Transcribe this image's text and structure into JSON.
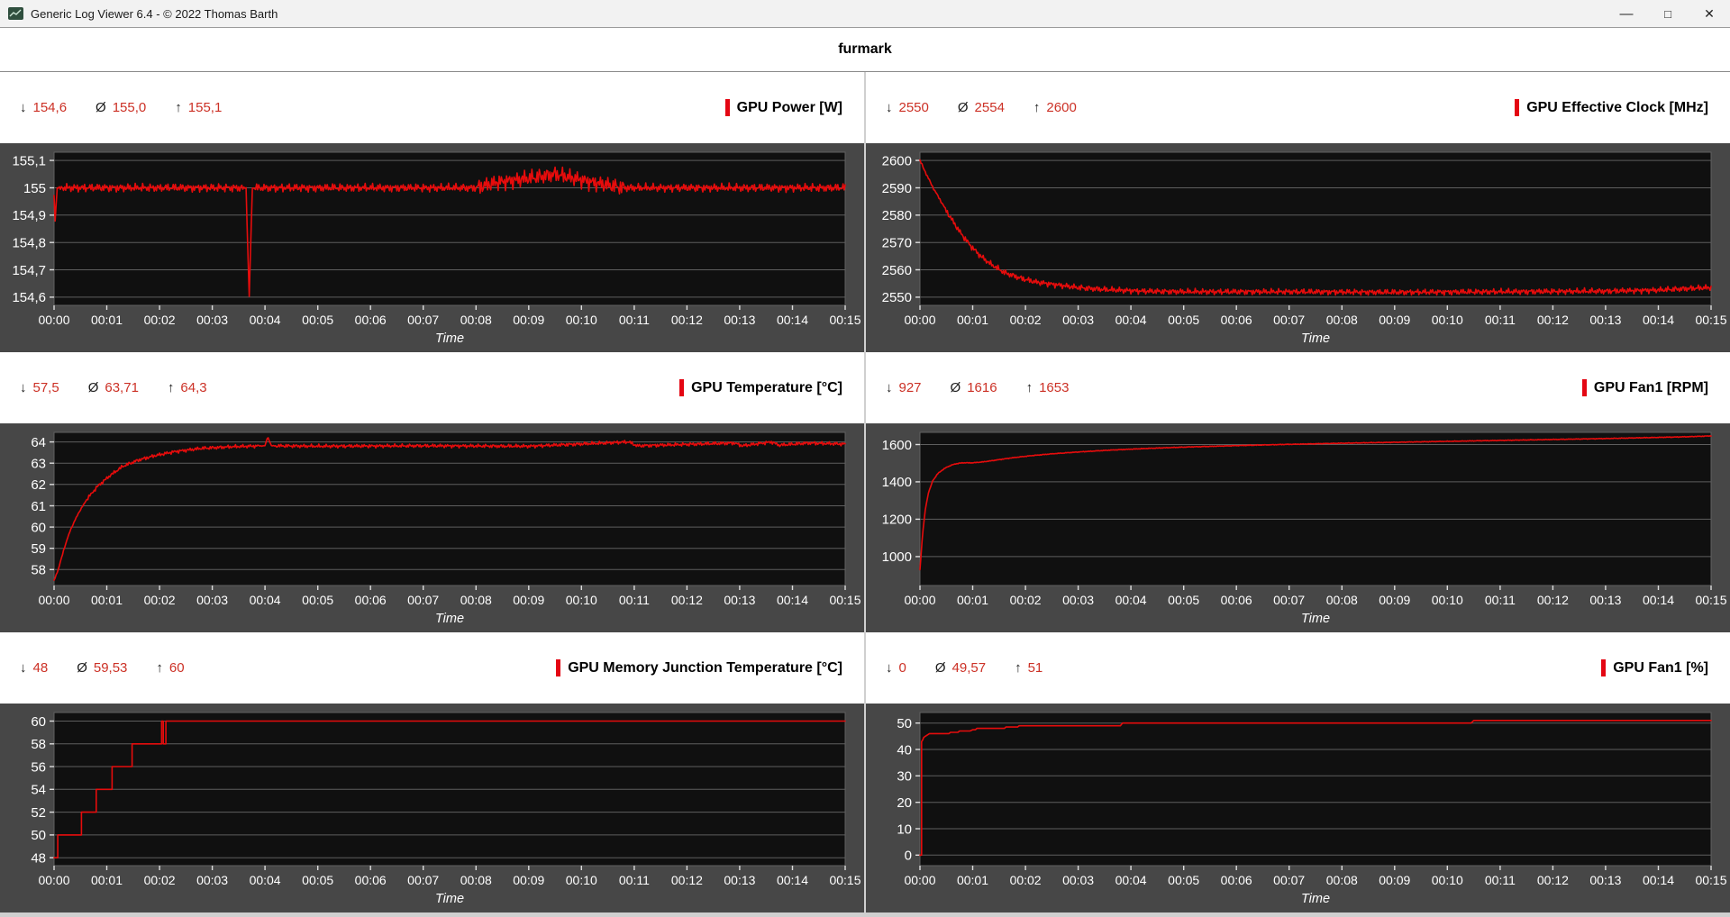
{
  "window": {
    "title": "Generic Log Viewer 6.4 - © 2022 Thomas Barth",
    "controls": {
      "minimize_icon": "—",
      "maximize_icon": "□",
      "close_icon": "✕"
    }
  },
  "header": {
    "title": "furmark"
  },
  "symbols": {
    "min": "↓",
    "avg": "Ø",
    "max": "↑"
  },
  "chart_common": {
    "xlabel": "Time",
    "xlim": [
      0,
      15
    ],
    "xtick_labels": [
      "00:00",
      "00:01",
      "00:02",
      "00:03",
      "00:04",
      "00:05",
      "00:06",
      "00:07",
      "00:08",
      "00:09",
      "00:10",
      "00:11",
      "00:12",
      "00:13",
      "00:14",
      "00:15"
    ],
    "line_color": "#e60c0c",
    "grid_color": "#5e5e5e",
    "tick_color": "#dcdcdc",
    "plot_bg": "#101010",
    "panel_bg": "#474747",
    "stats_red": "#cc3126",
    "title_bar_red": "#e40613"
  },
  "chart_data": [
    {
      "type": "line",
      "title": "GPU Power [W]",
      "stats": {
        "min": "154,6",
        "avg": "155,0",
        "max": "155,1"
      },
      "ylim": [
        154.57,
        155.13
      ],
      "yticks": [
        {
          "v": 155.1,
          "label": "155,1"
        },
        {
          "v": 155,
          "label": "155"
        },
        {
          "v": 154.9,
          "label": "154,9"
        },
        {
          "v": 154.8,
          "label": "154,8"
        },
        {
          "v": 154.7,
          "label": "154,7"
        },
        {
          "v": 154.6,
          "label": "154,6"
        }
      ],
      "xlabel": "Time",
      "line": {
        "keypoints": [
          [
            0,
            154.97
          ],
          [
            0.02,
            154.88
          ],
          [
            0.06,
            155
          ],
          [
            3.64,
            155
          ],
          [
            3.7,
            154.6
          ],
          [
            3.76,
            155
          ],
          [
            8,
            155
          ],
          [
            8.4,
            155.02
          ],
          [
            9.2,
            155.04
          ],
          [
            9.5,
            155.05
          ],
          [
            10.2,
            155.02
          ],
          [
            10.8,
            155
          ],
          [
            15,
            155
          ]
        ],
        "noise": 0.018,
        "zones": [
          {
            "from": 0,
            "to": 0.1,
            "amp": 0.004
          },
          {
            "from": 3.6,
            "to": 3.8,
            "amp": 0.004
          },
          {
            "from": 8,
            "to": 10.8,
            "amp": 0.036
          }
        ]
      }
    },
    {
      "type": "line",
      "title": "GPU Effective Clock [MHz]",
      "stats": {
        "min": "2550",
        "avg": "2554",
        "max": "2600"
      },
      "ylim": [
        2547,
        2603
      ],
      "yticks": [
        {
          "v": 2600,
          "label": "2600"
        },
        {
          "v": 2590,
          "label": "2590"
        },
        {
          "v": 2580,
          "label": "2580"
        },
        {
          "v": 2570,
          "label": "2570"
        },
        {
          "v": 2560,
          "label": "2560"
        },
        {
          "v": 2550,
          "label": "2550"
        }
      ],
      "xlabel": "Time",
      "line": {
        "keypoints": [
          [
            0,
            2600
          ],
          [
            0.12,
            2595
          ],
          [
            0.25,
            2590
          ],
          [
            0.4,
            2585
          ],
          [
            0.55,
            2580
          ],
          [
            0.75,
            2574
          ],
          [
            0.95,
            2569
          ],
          [
            1.15,
            2565
          ],
          [
            1.35,
            2562
          ],
          [
            1.6,
            2559
          ],
          [
            1.9,
            2557
          ],
          [
            2.2,
            2555.5
          ],
          [
            2.6,
            2554.5
          ],
          [
            3,
            2553.5
          ],
          [
            3.5,
            2552.8
          ],
          [
            4.2,
            2552.2
          ],
          [
            5,
            2552
          ],
          [
            7,
            2552
          ],
          [
            9,
            2551.8
          ],
          [
            11,
            2552
          ],
          [
            13,
            2552.2
          ],
          [
            14,
            2552.6
          ],
          [
            14.6,
            2553.2
          ],
          [
            15,
            2553.5
          ]
        ],
        "noise": 1.3,
        "zones": [
          {
            "from": 0,
            "to": 0.5,
            "amp": 0.5
          }
        ]
      }
    },
    {
      "type": "line",
      "title": "GPU Temperature [°C]",
      "stats": {
        "min": "57,5",
        "avg": "63,71",
        "max": "64,3"
      },
      "ylim": [
        57.25,
        64.45
      ],
      "yticks": [
        {
          "v": 64,
          "label": "64"
        },
        {
          "v": 63,
          "label": "63"
        },
        {
          "v": 62,
          "label": "62"
        },
        {
          "v": 61,
          "label": "61"
        },
        {
          "v": 60,
          "label": "60"
        },
        {
          "v": 59,
          "label": "59"
        },
        {
          "v": 58,
          "label": "58"
        }
      ],
      "xlabel": "Time",
      "line": {
        "keypoints": [
          [
            0,
            57.5
          ],
          [
            0.08,
            58
          ],
          [
            0.18,
            58.9
          ],
          [
            0.3,
            59.8
          ],
          [
            0.45,
            60.6
          ],
          [
            0.62,
            61.3
          ],
          [
            0.82,
            61.9
          ],
          [
            1.05,
            62.4
          ],
          [
            1.3,
            62.85
          ],
          [
            1.6,
            63.15
          ],
          [
            1.9,
            63.35
          ],
          [
            2.3,
            63.55
          ],
          [
            2.8,
            63.7
          ],
          [
            3.4,
            63.78
          ],
          [
            4,
            63.82
          ],
          [
            4.05,
            64.25
          ],
          [
            4.12,
            63.82
          ],
          [
            5,
            63.8
          ],
          [
            7,
            63.82
          ],
          [
            9,
            63.8
          ],
          [
            10.9,
            64
          ],
          [
            11.05,
            63.82
          ],
          [
            12.9,
            63.95
          ],
          [
            13.05,
            63.82
          ],
          [
            13.6,
            64
          ],
          [
            13.75,
            63.85
          ],
          [
            14.3,
            63.95
          ],
          [
            15,
            63.9
          ]
        ],
        "noise": 0.1,
        "zones": [
          {
            "from": 0,
            "to": 0.6,
            "amp": 0.03
          },
          {
            "from": 3.9,
            "to": 4.2,
            "amp": 0.02
          }
        ]
      }
    },
    {
      "type": "line",
      "title": "GPU Fan1 [RPM]",
      "stats": {
        "min": "927",
        "avg": "1616",
        "max": "1653"
      },
      "ylim": [
        845,
        1665
      ],
      "yticks": [
        {
          "v": 1600,
          "label": "1600"
        },
        {
          "v": 1400,
          "label": "1400"
        },
        {
          "v": 1200,
          "label": "1200"
        },
        {
          "v": 1000,
          "label": "1000"
        }
      ],
      "xlabel": "Time",
      "line": {
        "keypoints": [
          [
            0,
            930
          ],
          [
            0.05,
            1120
          ],
          [
            0.1,
            1250
          ],
          [
            0.16,
            1340
          ],
          [
            0.24,
            1405
          ],
          [
            0.35,
            1448
          ],
          [
            0.5,
            1478
          ],
          [
            0.65,
            1495
          ],
          [
            0.8,
            1502
          ],
          [
            1,
            1502
          ],
          [
            1.2,
            1507
          ],
          [
            1.45,
            1517
          ],
          [
            1.75,
            1529
          ],
          [
            2.1,
            1540
          ],
          [
            2.5,
            1550
          ],
          [
            3,
            1560
          ],
          [
            3.6,
            1570
          ],
          [
            4.3,
            1579
          ],
          [
            5,
            1586
          ],
          [
            6,
            1594
          ],
          [
            7,
            1601
          ],
          [
            8,
            1607
          ],
          [
            9,
            1612
          ],
          [
            10,
            1617
          ],
          [
            11,
            1622
          ],
          [
            12,
            1627
          ],
          [
            13,
            1632
          ],
          [
            14,
            1638
          ],
          [
            14.6,
            1642
          ],
          [
            15,
            1646
          ]
        ],
        "noise": 2.2,
        "zones": [
          {
            "from": 0,
            "to": 0.3,
            "amp": 0.5
          }
        ]
      }
    },
    {
      "type": "line",
      "title": "GPU Memory Junction Temperature [°C]",
      "stats": {
        "min": "48",
        "avg": "59,53",
        "max": "60"
      },
      "ylim": [
        47.3,
        60.75
      ],
      "yticks": [
        {
          "v": 60,
          "label": "60"
        },
        {
          "v": 58,
          "label": "58"
        },
        {
          "v": 56,
          "label": "56"
        },
        {
          "v": 54,
          "label": "54"
        },
        {
          "v": 52,
          "label": "52"
        },
        {
          "v": 50,
          "label": "50"
        },
        {
          "v": 48,
          "label": "48"
        }
      ],
      "xlabel": "Time",
      "line": {
        "direct": true,
        "keypoints": [
          [
            0,
            48
          ],
          [
            0.07,
            48
          ],
          [
            0.07,
            50
          ],
          [
            0.52,
            50
          ],
          [
            0.52,
            52
          ],
          [
            0.8,
            52
          ],
          [
            0.8,
            54
          ],
          [
            1.1,
            54
          ],
          [
            1.1,
            56
          ],
          [
            1.48,
            56
          ],
          [
            1.48,
            58
          ],
          [
            2.04,
            58
          ],
          [
            2.04,
            60
          ],
          [
            2.07,
            60
          ],
          [
            2.07,
            58
          ],
          [
            2.12,
            58
          ],
          [
            2.12,
            60
          ],
          [
            15,
            60
          ]
        ],
        "noise": 0
      }
    },
    {
      "type": "line",
      "title": "GPU Fan1 [%]",
      "stats": {
        "min": "0",
        "avg": "49,57",
        "max": "51"
      },
      "ylim": [
        -4,
        54
      ],
      "yticks": [
        {
          "v": 50,
          "label": "50"
        },
        {
          "v": 40,
          "label": "40"
        },
        {
          "v": 30,
          "label": "30"
        },
        {
          "v": 20,
          "label": "20"
        },
        {
          "v": 10,
          "label": "10"
        },
        {
          "v": 0,
          "label": "0"
        }
      ],
      "xlabel": "Time",
      "line": {
        "direct": true,
        "keypoints": [
          [
            0,
            0
          ],
          [
            0.03,
            0
          ],
          [
            0.03,
            43
          ],
          [
            0.05,
            43.5
          ],
          [
            0.07,
            44.5
          ],
          [
            0.1,
            45
          ],
          [
            0.14,
            45.5
          ],
          [
            0.18,
            46
          ],
          [
            0.55,
            46
          ],
          [
            0.58,
            46.5
          ],
          [
            0.72,
            46.5
          ],
          [
            0.75,
            47
          ],
          [
            0.95,
            47
          ],
          [
            1,
            47.5
          ],
          [
            1.05,
            47.5
          ],
          [
            1.08,
            48
          ],
          [
            1.6,
            48
          ],
          [
            1.63,
            48.5
          ],
          [
            1.85,
            48.5
          ],
          [
            1.88,
            49
          ],
          [
            3.8,
            49
          ],
          [
            3.84,
            50
          ],
          [
            10.45,
            50
          ],
          [
            10.5,
            51
          ],
          [
            15,
            51
          ]
        ],
        "noise": 0
      }
    }
  ]
}
